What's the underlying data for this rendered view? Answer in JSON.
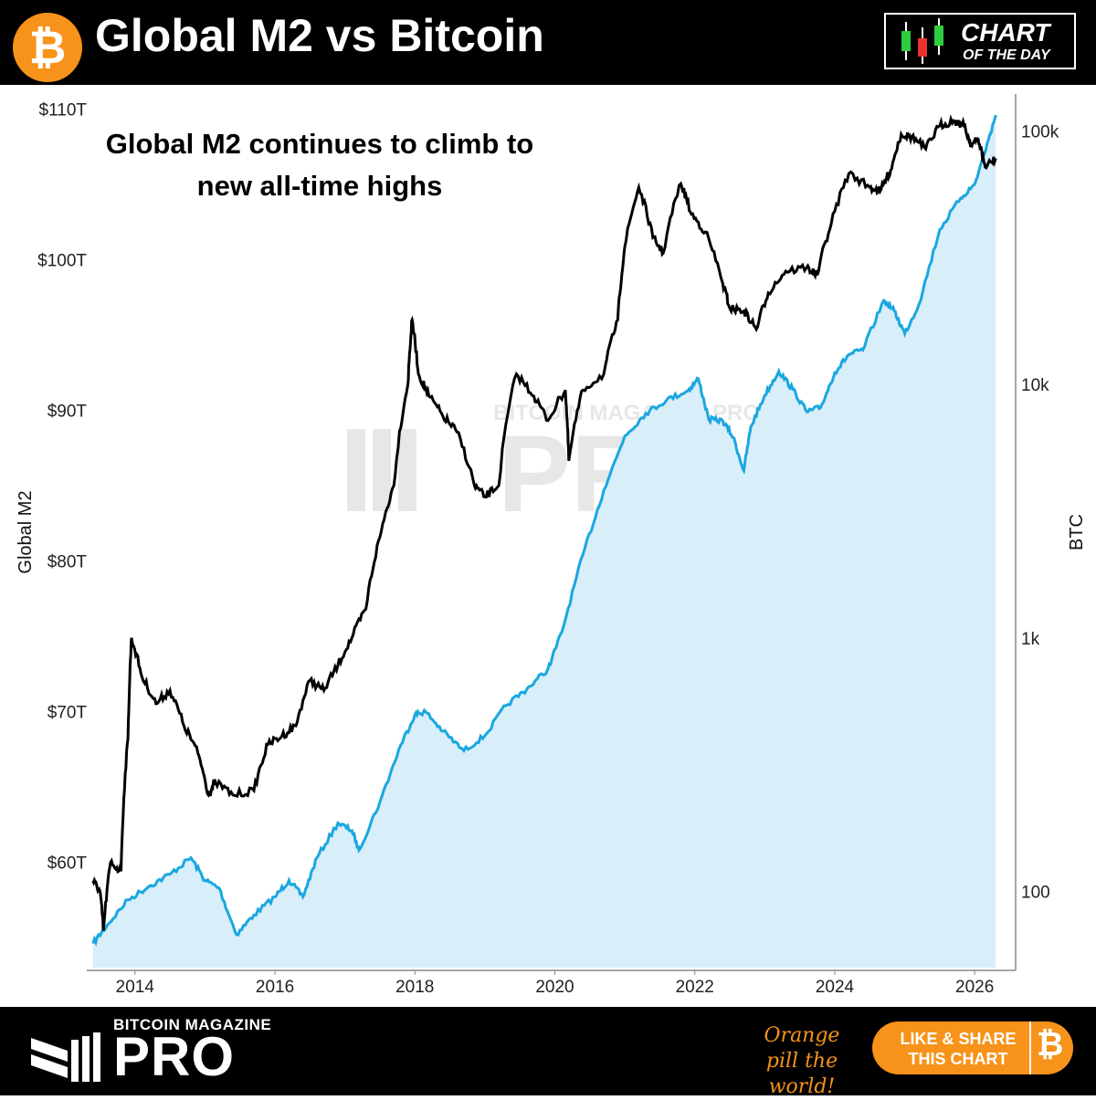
{
  "header": {
    "title": "Global M2 vs Bitcoin",
    "logo_icon": "bitcoin-icon",
    "badge_line1": "CHART",
    "badge_line2": "OF THE DAY"
  },
  "annotation": "Global M2 continues to climb to new all-time highs",
  "watermark": "BITCOIN MAGAZINE PRO",
  "footer": {
    "brand_small": "BITCOIN MAGAZINE",
    "brand_big": "PRO",
    "slogan": "Orange pill the world!",
    "share_label": "LIKE & SHARE THIS CHART",
    "share_icon": "bitcoin-icon"
  },
  "colors": {
    "m2_line": "#1aa7e0",
    "m2_fill": "#d8eef9",
    "btc_line": "#000000",
    "accent": "#f7931a"
  },
  "chart_data": {
    "type": "line",
    "title": "Global M2 vs Bitcoin",
    "xlabel": "",
    "ylabel": "Global M2",
    "y2label": "BTC",
    "x_ticks": [
      "2014",
      "2016",
      "2018",
      "2020",
      "2022",
      "2024",
      "2026"
    ],
    "y_ticks": [
      "$60T",
      "$70T",
      "$80T",
      "$90T",
      "$100T",
      "$110T"
    ],
    "y_tick_values": [
      60,
      70,
      80,
      90,
      100,
      110
    ],
    "y2_ticks": [
      "100",
      "1k",
      "10k",
      "100k"
    ],
    "y2_tick_values": [
      100,
      1000,
      10000,
      100000
    ],
    "xlim": [
      2013.35,
      2026.35
    ],
    "ylim": [
      53,
      111
    ],
    "y2lim": [
      50,
      140000
    ],
    "y2_scale": "log",
    "grid": false,
    "series": [
      {
        "name": "Global M2",
        "axis": "left",
        "points": [
          [
            2013.4,
            54.6
          ],
          [
            2013.6,
            55.8
          ],
          [
            2013.9,
            57.5
          ],
          [
            2014.2,
            58.4
          ],
          [
            2014.5,
            59.2
          ],
          [
            2014.8,
            60.3
          ],
          [
            2015.0,
            58.8
          ],
          [
            2015.2,
            58.3
          ],
          [
            2015.45,
            55.2
          ],
          [
            2015.7,
            56.5
          ],
          [
            2016.0,
            57.7
          ],
          [
            2016.2,
            58.8
          ],
          [
            2016.4,
            57.7
          ],
          [
            2016.6,
            60.3
          ],
          [
            2016.9,
            62.6
          ],
          [
            2017.1,
            62.1
          ],
          [
            2017.2,
            60.8
          ],
          [
            2017.5,
            64.0
          ],
          [
            2017.8,
            67.8
          ],
          [
            2018.0,
            69.8
          ],
          [
            2018.15,
            70.0
          ],
          [
            2018.4,
            68.7
          ],
          [
            2018.7,
            67.4
          ],
          [
            2019.0,
            68.4
          ],
          [
            2019.3,
            70.4
          ],
          [
            2019.6,
            71.5
          ],
          [
            2019.9,
            72.8
          ],
          [
            2020.1,
            75.3
          ],
          [
            2020.4,
            80.4
          ],
          [
            2020.7,
            84.7
          ],
          [
            2021.0,
            88.3
          ],
          [
            2021.3,
            89.8
          ],
          [
            2021.6,
            90.7
          ],
          [
            2021.9,
            91.3
          ],
          [
            2022.05,
            92.1
          ],
          [
            2022.2,
            89.4
          ],
          [
            2022.4,
            89.3
          ],
          [
            2022.55,
            88.2
          ],
          [
            2022.7,
            86.0
          ],
          [
            2022.8,
            88.9
          ],
          [
            2023.0,
            91.0
          ],
          [
            2023.2,
            92.6
          ],
          [
            2023.4,
            91.4
          ],
          [
            2023.6,
            89.9
          ],
          [
            2023.8,
            90.2
          ],
          [
            2024.0,
            92.5
          ],
          [
            2024.2,
            93.7
          ],
          [
            2024.4,
            94.0
          ],
          [
            2024.7,
            97.3
          ],
          [
            2024.85,
            96.6
          ],
          [
            2025.0,
            95.1
          ],
          [
            2025.2,
            97.0
          ],
          [
            2025.5,
            102.0
          ],
          [
            2025.8,
            104.1
          ],
          [
            2026.0,
            105.0
          ],
          [
            2026.2,
            108.0
          ],
          [
            2026.3,
            109.6
          ]
        ]
      },
      {
        "name": "BTC",
        "axis": "right",
        "points": [
          [
            2013.4,
            110
          ],
          [
            2013.5,
            100
          ],
          [
            2013.55,
            70
          ],
          [
            2013.65,
            130
          ],
          [
            2013.8,
            120
          ],
          [
            2013.9,
            400
          ],
          [
            2013.95,
            1000
          ],
          [
            2014.1,
            700
          ],
          [
            2014.3,
            550
          ],
          [
            2014.5,
            620
          ],
          [
            2014.7,
            450
          ],
          [
            2014.9,
            350
          ],
          [
            2015.05,
            240
          ],
          [
            2015.15,
            270
          ],
          [
            2015.4,
            240
          ],
          [
            2015.7,
            250
          ],
          [
            2015.9,
            380
          ],
          [
            2016.1,
            410
          ],
          [
            2016.3,
            450
          ],
          [
            2016.5,
            680
          ],
          [
            2016.7,
            620
          ],
          [
            2016.9,
            780
          ],
          [
            2017.1,
            1000
          ],
          [
            2017.3,
            1300
          ],
          [
            2017.5,
            2500
          ],
          [
            2017.7,
            4000
          ],
          [
            2017.9,
            10000
          ],
          [
            2017.96,
            18000
          ],
          [
            2018.05,
            11000
          ],
          [
            2018.2,
            9000
          ],
          [
            2018.4,
            7500
          ],
          [
            2018.6,
            6500
          ],
          [
            2018.85,
            4000
          ],
          [
            2019.0,
            3600
          ],
          [
            2019.2,
            4000
          ],
          [
            2019.45,
            11000
          ],
          [
            2019.7,
            9000
          ],
          [
            2019.9,
            7200
          ],
          [
            2020.15,
            9500
          ],
          [
            2020.2,
            5000
          ],
          [
            2020.4,
            9500
          ],
          [
            2020.7,
            11000
          ],
          [
            2020.9,
            18000
          ],
          [
            2021.0,
            35000
          ],
          [
            2021.2,
            60000
          ],
          [
            2021.4,
            38000
          ],
          [
            2021.55,
            33000
          ],
          [
            2021.8,
            62000
          ],
          [
            2021.95,
            47000
          ],
          [
            2022.15,
            40000
          ],
          [
            2022.4,
            25000
          ],
          [
            2022.5,
            20000
          ],
          [
            2022.7,
            19500
          ],
          [
            2022.88,
            16500
          ],
          [
            2023.05,
            23000
          ],
          [
            2023.3,
            28000
          ],
          [
            2023.6,
            29000
          ],
          [
            2023.75,
            27000
          ],
          [
            2023.95,
            43000
          ],
          [
            2024.2,
            68000
          ],
          [
            2024.5,
            60000
          ],
          [
            2024.65,
            58000
          ],
          [
            2024.8,
            70000
          ],
          [
            2024.95,
            97000
          ],
          [
            2025.1,
            95000
          ],
          [
            2025.3,
            85000
          ],
          [
            2025.5,
            105000
          ],
          [
            2025.7,
            110000
          ],
          [
            2025.85,
            105000
          ],
          [
            2025.95,
            88000
          ],
          [
            2026.05,
            93000
          ],
          [
            2026.15,
            72000
          ],
          [
            2026.3,
            78000
          ]
        ]
      }
    ]
  }
}
